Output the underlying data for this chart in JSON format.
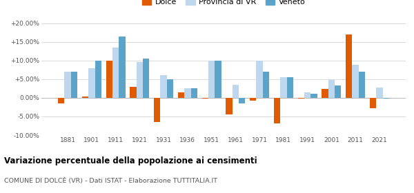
{
  "years": [
    1881,
    1901,
    1911,
    1921,
    1931,
    1936,
    1951,
    1961,
    1971,
    1981,
    1991,
    2001,
    2011,
    2021
  ],
  "dolce": [
    -1.5,
    0.3,
    10.0,
    3.0,
    -6.5,
    1.5,
    -0.2,
    -4.5,
    -0.8,
    -6.8,
    -0.2,
    2.3,
    17.0,
    -2.8
  ],
  "provincia_vr": [
    7.0,
    8.0,
    13.5,
    9.5,
    6.0,
    2.5,
    10.0,
    3.5,
    10.0,
    5.5,
    1.5,
    4.8,
    8.8,
    2.7
  ],
  "veneto": [
    7.0,
    10.0,
    16.5,
    10.5,
    5.0,
    2.5,
    10.0,
    -1.5,
    7.0,
    5.5,
    1.0,
    3.3,
    7.0,
    -0.2
  ],
  "dolce_color": "#E05A00",
  "provincia_color": "#BDD7EE",
  "veneto_color": "#5BA3C9",
  "title": "Variazione percentuale della popolazione ai censimenti",
  "subtitle": "COMUNE DI DOLCÈ (VR) - Dati ISTAT - Elaborazione TUTTITALIA.IT",
  "ylim": [
    -10,
    20
  ],
  "yticks": [
    -10,
    -5,
    0,
    5,
    10,
    15,
    20
  ],
  "ytick_labels": [
    "-10.00%",
    "-5.00%",
    "0.00%",
    "+5.00%",
    "+10.00%",
    "+15.00%",
    "+20.00%"
  ],
  "legend_labels": [
    "Dolcè",
    "Provincia di VR",
    "Veneto"
  ],
  "bar_width": 0.27
}
